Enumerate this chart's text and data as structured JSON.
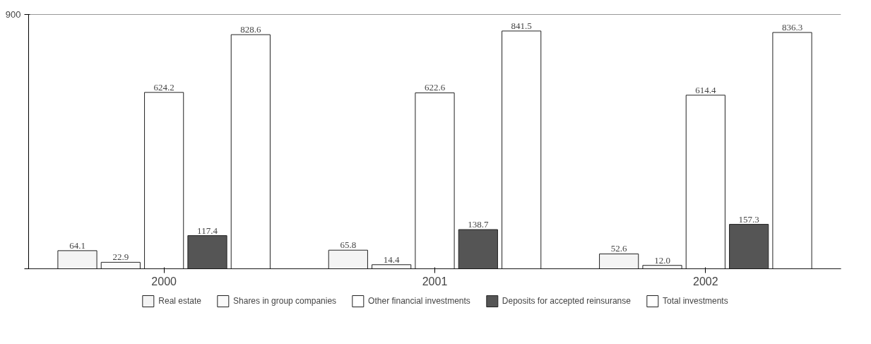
{
  "chart_data": {
    "type": "bar",
    "categories": [
      "2000",
      "2001",
      "2002"
    ],
    "series": [
      {
        "name": "Real estate",
        "color": "#f4f4f4",
        "values": [
          64.1,
          65.8,
          52.6
        ],
        "value_labels": [
          "64.1",
          "65.8",
          "52.6"
        ]
      },
      {
        "name": "Shares in group companies",
        "color": "#fafafa",
        "values": [
          22.9,
          14.4,
          12.0
        ],
        "value_labels": [
          "22.9",
          "14.4",
          "12.0"
        ]
      },
      {
        "name": "Other financial investments",
        "color": "#ffffff",
        "values": [
          624.2,
          622.6,
          614.4
        ],
        "value_labels": [
          "624.2",
          "622.6",
          "614.4"
        ]
      },
      {
        "name": "Deposits for accepted reinsuranse",
        "color": "#555555",
        "values": [
          117.4,
          138.7,
          157.3
        ],
        "value_labels": [
          "117.4",
          "138.7",
          "157.3"
        ]
      },
      {
        "name": "Total investments",
        "color": "#ffffff",
        "values": [
          828.6,
          841.5,
          836.3
        ],
        "value_labels": [
          "828.6",
          "841.5",
          "836.3"
        ]
      }
    ],
    "ylim": [
      0,
      900
    ],
    "yticks": [
      {
        "value": 0,
        "label": null
      },
      900
    ],
    "grid": "y",
    "legend": "bottom"
  }
}
